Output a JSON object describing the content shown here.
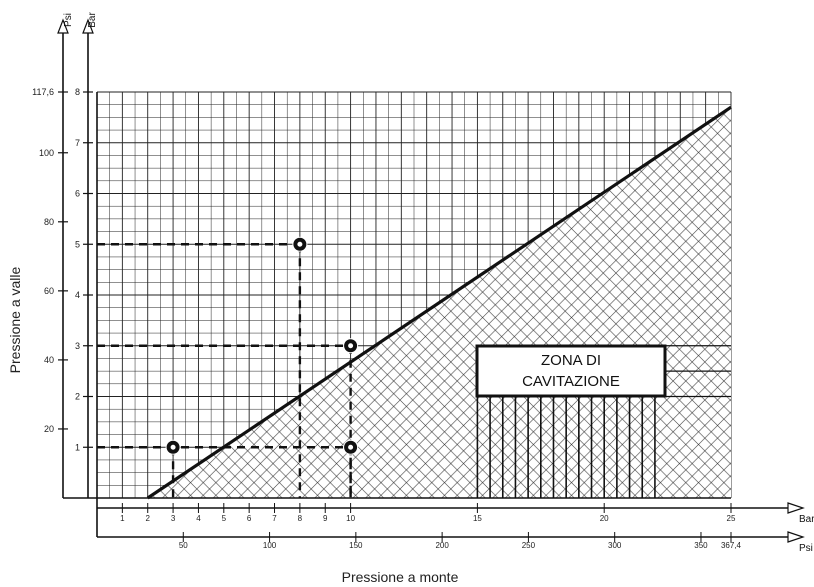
{
  "chart_data": {
    "type": "area",
    "xlabel": "Pressione a monte",
    "ylabel": "Pressione a valle",
    "zone_label_line1": "ZONA DI",
    "zone_label_line2": "CAVITAZIONE",
    "x_bar_unit": "Bar",
    "x_psi_unit": "Psi",
    "y_bar_unit": "Bar",
    "y_psi_unit": "Psi",
    "x_bar_ticks": [
      "1",
      "2",
      "3",
      "4",
      "5",
      "6",
      "7",
      "8",
      "9",
      "10",
      "15",
      "20",
      "25"
    ],
    "x_psi_ticks": [
      "50",
      "100",
      "150",
      "200",
      "250",
      "300",
      "350",
      "367,4"
    ],
    "y_bar_ticks": [
      "1",
      "2",
      "3",
      "4",
      "5",
      "6",
      "7",
      "8"
    ],
    "y_psi_ticks": [
      "20",
      "40",
      "60",
      "80",
      "100",
      "117,6"
    ],
    "xlim_bar": [
      0,
      25
    ],
    "ylim_bar": [
      0,
      8
    ],
    "cavitation_boundary": {
      "x": [
        2,
        25
      ],
      "y": [
        0,
        7.7
      ]
    },
    "example_points": [
      {
        "x": 3,
        "y": 1
      },
      {
        "x": 8,
        "y": 5
      },
      {
        "x": 10,
        "y": 3
      },
      {
        "x": 10,
        "y": 1
      }
    ],
    "colors": {
      "line": "#111111",
      "grid": "#222222",
      "background": "#ffffff"
    }
  }
}
